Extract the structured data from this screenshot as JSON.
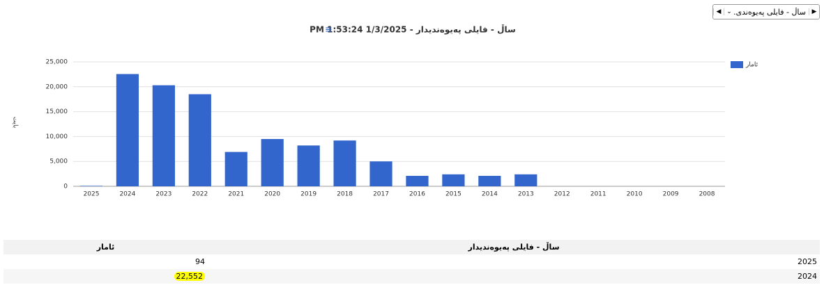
{
  "toolbar": {
    "dropdown": "ساڵ - فایلی پەیوەندی.."
  },
  "chart_data": {
    "type": "bar",
    "title": "ساڵ - فایلی پەیوەندیدار - 1/3/2025 1:53:24 PM",
    "y_label": "بایت",
    "categories": [
      "2025",
      "2024",
      "2023",
      "2022",
      "2021",
      "2020",
      "2019",
      "2018",
      "2017",
      "2016",
      "2015",
      "2014",
      "2013",
      "2012",
      "2011",
      "2010",
      "2009",
      "2008"
    ],
    "series": [
      {
        "name": "ئامار",
        "color": "#3366cc",
        "values": [
          94,
          22552,
          20300,
          18500,
          6900,
          9500,
          8200,
          9200,
          5000,
          2100,
          2400,
          2100,
          2400,
          0,
          0,
          0,
          0,
          0
        ]
      }
    ],
    "ylim": [
      0,
      25000
    ],
    "yticks": [
      0,
      {
        "value": 5000,
        "label": "5,000"
      },
      {
        "value": 10000,
        "label": "10,000"
      },
      {
        "value": 15000,
        "label": "15,000"
      },
      {
        "value": 20000,
        "label": "20,000"
      },
      {
        "value": 25000,
        "label": "25,000"
      }
    ],
    "grid": true,
    "legend": "top-right"
  },
  "table": {
    "header": [
      "ئامار",
      "ساڵ - فایلی پەیوەندیدار"
    ],
    "rows": [
      [
        "94",
        "2025"
      ],
      [
        "22,552",
        "2024"
      ]
    ]
  }
}
